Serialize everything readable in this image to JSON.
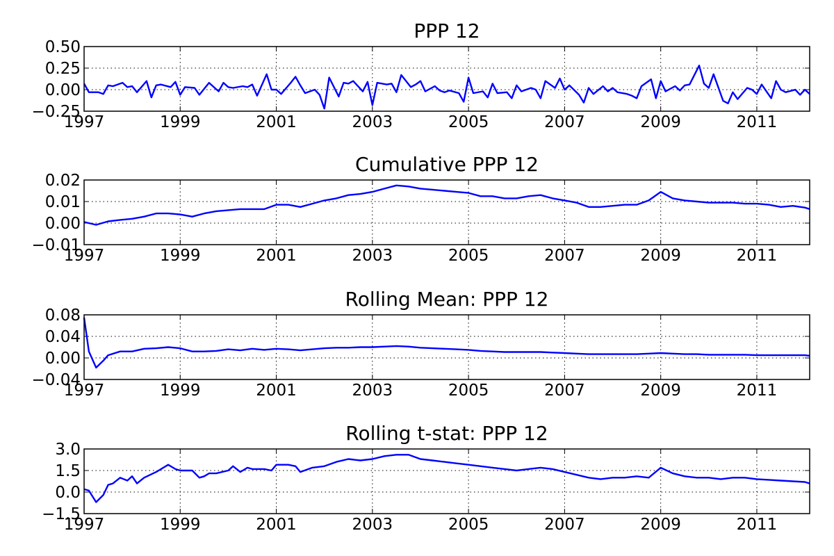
{
  "figure": {
    "line_color": "#0000ff",
    "grid": true,
    "grid_style": "dotted",
    "x_ticks": [
      "1997",
      "1999",
      "2001",
      "2003",
      "2005",
      "2007",
      "2009",
      "2011"
    ]
  },
  "chart_data": [
    {
      "type": "line",
      "title": "PPP 12",
      "xlabel": "",
      "ylabel": "",
      "xlim": [
        1997.0,
        2012.1
      ],
      "ylim": [
        -0.25,
        0.5
      ],
      "y_ticks": [
        "−0.25",
        "0.00",
        "0.25",
        "0.50"
      ],
      "series": [
        {
          "x": [
            1997.0,
            1997.1,
            1997.3,
            1997.4,
            1997.5,
            1997.6,
            1997.8,
            1997.9,
            1998.0,
            1998.1,
            1998.3,
            1998.4,
            1998.5,
            1998.6,
            1998.8,
            1998.9,
            1999.0,
            1999.1,
            1999.3,
            1999.4,
            1999.5,
            1999.6,
            1999.8,
            1999.9,
            2000.0,
            2000.1,
            2000.3,
            2000.4,
            2000.5,
            2000.6,
            2000.8,
            2000.9,
            2001.0,
            2001.1,
            2001.3,
            2001.4,
            2001.5,
            2001.6,
            2001.8,
            2001.9,
            2002.0,
            2002.1,
            2002.3,
            2002.4,
            2002.5,
            2002.6,
            2002.8,
            2002.9,
            2003.0,
            2003.1,
            2003.3,
            2003.4,
            2003.5,
            2003.6,
            2003.8,
            2003.9,
            2004.0,
            2004.1,
            2004.3,
            2004.4,
            2004.5,
            2004.6,
            2004.8,
            2004.9,
            2005.0,
            2005.1,
            2005.3,
            2005.4,
            2005.5,
            2005.6,
            2005.8,
            2005.9,
            2006.0,
            2006.1,
            2006.3,
            2006.4,
            2006.5,
            2006.6,
            2006.8,
            2006.9,
            2007.0,
            2007.1,
            2007.3,
            2007.4,
            2007.5,
            2007.6,
            2007.8,
            2007.9,
            2008.0,
            2008.1,
            2008.3,
            2008.4,
            2008.5,
            2008.6,
            2008.8,
            2008.9,
            2009.0,
            2009.1,
            2009.3,
            2009.4,
            2009.5,
            2009.6,
            2009.8,
            2009.9,
            2010.0,
            2010.1,
            2010.3,
            2010.4,
            2010.5,
            2010.6,
            2010.8,
            2010.9,
            2011.0,
            2011.1,
            2011.3,
            2011.4,
            2011.5,
            2011.6,
            2011.8,
            2011.9,
            2012.0,
            2012.1
          ],
          "y": [
            0.07,
            -0.03,
            -0.03,
            -0.05,
            0.05,
            0.04,
            0.08,
            0.03,
            0.04,
            -0.03,
            0.1,
            -0.09,
            0.05,
            0.06,
            0.03,
            0.09,
            -0.06,
            0.03,
            0.02,
            -0.06,
            0.01,
            0.08,
            -0.02,
            0.08,
            0.03,
            0.02,
            0.04,
            0.03,
            0.06,
            -0.07,
            0.18,
            0.0,
            0.0,
            -0.05,
            0.08,
            0.15,
            0.05,
            -0.04,
            0.0,
            -0.06,
            -0.22,
            0.14,
            -0.08,
            0.08,
            0.07,
            0.1,
            -0.02,
            0.09,
            -0.18,
            0.08,
            0.06,
            0.07,
            -0.03,
            0.17,
            0.03,
            0.06,
            0.1,
            -0.02,
            0.04,
            -0.01,
            -0.03,
            -0.01,
            -0.04,
            -0.14,
            0.14,
            -0.04,
            -0.02,
            -0.09,
            0.07,
            -0.04,
            -0.03,
            -0.1,
            0.05,
            -0.02,
            0.02,
            0.0,
            -0.1,
            0.1,
            0.02,
            0.13,
            0.0,
            0.05,
            -0.06,
            -0.15,
            0.02,
            -0.05,
            0.04,
            -0.02,
            0.02,
            -0.03,
            -0.05,
            -0.07,
            -0.1,
            0.04,
            0.12,
            -0.1,
            0.1,
            -0.02,
            0.04,
            -0.01,
            0.05,
            0.06,
            0.28,
            0.07,
            0.02,
            0.18,
            -0.13,
            -0.16,
            -0.03,
            -0.11,
            0.02,
            0.0,
            -0.05,
            0.06,
            -0.1,
            0.1,
            0.0,
            -0.03,
            0.0,
            -0.06,
            0.0,
            -0.05
          ]
        }
      ]
    },
    {
      "type": "line",
      "title": "Cumulative PPP 12",
      "xlabel": "",
      "ylabel": "",
      "xlim": [
        1997.0,
        2012.1
      ],
      "ylim": [
        -0.01,
        0.02
      ],
      "y_ticks": [
        "−0.01",
        "0.00",
        "0.01",
        "0.02"
      ],
      "series": [
        {
          "x": [
            1997.0,
            1997.25,
            1997.5,
            1997.75,
            1998.0,
            1998.25,
            1998.5,
            1998.75,
            1999.0,
            1999.25,
            1999.5,
            1999.75,
            2000.0,
            2000.25,
            2000.5,
            2000.75,
            2001.0,
            2001.25,
            2001.5,
            2001.75,
            2002.0,
            2002.25,
            2002.5,
            2002.75,
            2003.0,
            2003.25,
            2003.5,
            2003.75,
            2004.0,
            2004.25,
            2004.5,
            2004.75,
            2005.0,
            2005.25,
            2005.5,
            2005.75,
            2006.0,
            2006.25,
            2006.5,
            2006.75,
            2007.0,
            2007.25,
            2007.5,
            2007.75,
            2008.0,
            2008.25,
            2008.5,
            2008.75,
            2009.0,
            2009.25,
            2009.5,
            2009.75,
            2010.0,
            2010.25,
            2010.5,
            2010.75,
            2011.0,
            2011.25,
            2011.5,
            2011.75,
            2012.0,
            2012.1
          ],
          "y": [
            0.0005,
            -0.0008,
            0.0008,
            0.0015,
            0.002,
            0.003,
            0.0045,
            0.0045,
            0.004,
            0.003,
            0.0045,
            0.0055,
            0.006,
            0.0065,
            0.0065,
            0.0065,
            0.0085,
            0.0085,
            0.0075,
            0.009,
            0.0105,
            0.0115,
            0.013,
            0.0135,
            0.0145,
            0.016,
            0.0175,
            0.017,
            0.016,
            0.0155,
            0.015,
            0.0145,
            0.014,
            0.0125,
            0.0125,
            0.0115,
            0.0115,
            0.0125,
            0.013,
            0.0115,
            0.0105,
            0.0095,
            0.0075,
            0.0075,
            0.008,
            0.0085,
            0.0085,
            0.0105,
            0.0145,
            0.0115,
            0.0105,
            0.01,
            0.0095,
            0.0095,
            0.0095,
            0.009,
            0.009,
            0.0085,
            0.0075,
            0.008,
            0.0072,
            0.0065
          ]
        }
      ]
    },
    {
      "type": "line",
      "title": "Rolling Mean: PPP 12",
      "xlabel": "",
      "ylabel": "",
      "xlim": [
        1997.0,
        2012.1
      ],
      "ylim": [
        -0.04,
        0.08
      ],
      "y_ticks": [
        "−0.04",
        "0.00",
        "0.04",
        "0.08"
      ],
      "series": [
        {
          "x": [
            1997.0,
            1997.1,
            1997.25,
            1997.4,
            1997.5,
            1997.75,
            1998.0,
            1998.25,
            1998.5,
            1998.75,
            1999.0,
            1999.25,
            1999.5,
            1999.75,
            2000.0,
            2000.25,
            2000.5,
            2000.75,
            2001.0,
            2001.25,
            2001.5,
            2001.75,
            2002.0,
            2002.25,
            2002.5,
            2002.75,
            2003.0,
            2003.25,
            2003.5,
            2003.75,
            2004.0,
            2004.25,
            2004.5,
            2004.75,
            2005.0,
            2005.25,
            2005.5,
            2005.75,
            2006.0,
            2006.25,
            2006.5,
            2006.75,
            2007.0,
            2007.25,
            2007.5,
            2007.75,
            2008.0,
            2008.25,
            2008.5,
            2008.75,
            2009.0,
            2009.25,
            2009.5,
            2009.75,
            2010.0,
            2010.25,
            2010.5,
            2010.75,
            2011.0,
            2011.25,
            2011.5,
            2011.75,
            2012.0,
            2012.1
          ],
          "y": [
            0.075,
            0.012,
            -0.018,
            -0.005,
            0.005,
            0.012,
            0.012,
            0.017,
            0.018,
            0.02,
            0.018,
            0.012,
            0.012,
            0.013,
            0.016,
            0.014,
            0.017,
            0.015,
            0.017,
            0.016,
            0.014,
            0.016,
            0.018,
            0.019,
            0.019,
            0.02,
            0.02,
            0.021,
            0.022,
            0.021,
            0.019,
            0.018,
            0.017,
            0.016,
            0.015,
            0.013,
            0.012,
            0.011,
            0.011,
            0.011,
            0.011,
            0.01,
            0.009,
            0.008,
            0.007,
            0.007,
            0.007,
            0.007,
            0.007,
            0.008,
            0.009,
            0.008,
            0.007,
            0.007,
            0.006,
            0.006,
            0.006,
            0.006,
            0.005,
            0.005,
            0.005,
            0.005,
            0.005,
            0.004
          ]
        }
      ]
    },
    {
      "type": "line",
      "title": "Rolling t-stat: PPP 12",
      "xlabel": "",
      "ylabel": "",
      "xlim": [
        1997.0,
        2012.1
      ],
      "ylim": [
        -1.5,
        3.0
      ],
      "y_ticks": [
        "−1.5",
        "0.0",
        "1.5",
        "3.0"
      ],
      "series": [
        {
          "x": [
            1997.0,
            1997.1,
            1997.25,
            1997.4,
            1997.5,
            1997.6,
            1997.75,
            1997.9,
            1998.0,
            1998.1,
            1998.25,
            1998.5,
            1998.75,
            1998.9,
            1999.0,
            1999.25,
            1999.4,
            1999.5,
            1999.6,
            1999.75,
            2000.0,
            2000.1,
            2000.25,
            2000.4,
            2000.5,
            2000.75,
            2000.9,
            2001.0,
            2001.25,
            2001.4,
            2001.5,
            2001.75,
            2002.0,
            2002.25,
            2002.5,
            2002.75,
            2003.0,
            2003.25,
            2003.5,
            2003.75,
            2004.0,
            2004.25,
            2004.5,
            2004.75,
            2005.0,
            2005.25,
            2005.5,
            2005.75,
            2006.0,
            2006.25,
            2006.5,
            2006.75,
            2007.0,
            2007.25,
            2007.5,
            2007.75,
            2008.0,
            2008.25,
            2008.5,
            2008.75,
            2009.0,
            2009.25,
            2009.5,
            2009.75,
            2010.0,
            2010.25,
            2010.5,
            2010.75,
            2011.0,
            2011.25,
            2011.5,
            2011.75,
            2012.0,
            2012.1
          ],
          "y": [
            0.2,
            0.1,
            -0.7,
            -0.2,
            0.5,
            0.6,
            1.0,
            0.8,
            1.1,
            0.6,
            1.0,
            1.4,
            1.9,
            1.6,
            1.5,
            1.5,
            1.0,
            1.1,
            1.3,
            1.3,
            1.5,
            1.8,
            1.4,
            1.7,
            1.6,
            1.6,
            1.5,
            1.9,
            1.9,
            1.8,
            1.4,
            1.7,
            1.8,
            2.1,
            2.3,
            2.2,
            2.3,
            2.5,
            2.6,
            2.6,
            2.3,
            2.2,
            2.1,
            2.0,
            1.9,
            1.8,
            1.7,
            1.6,
            1.5,
            1.6,
            1.7,
            1.6,
            1.4,
            1.2,
            1.0,
            0.9,
            1.0,
            1.0,
            1.1,
            1.0,
            1.7,
            1.3,
            1.1,
            1.0,
            1.0,
            0.9,
            1.0,
            1.0,
            0.9,
            0.85,
            0.8,
            0.75,
            0.7,
            0.6
          ]
        }
      ]
    }
  ]
}
